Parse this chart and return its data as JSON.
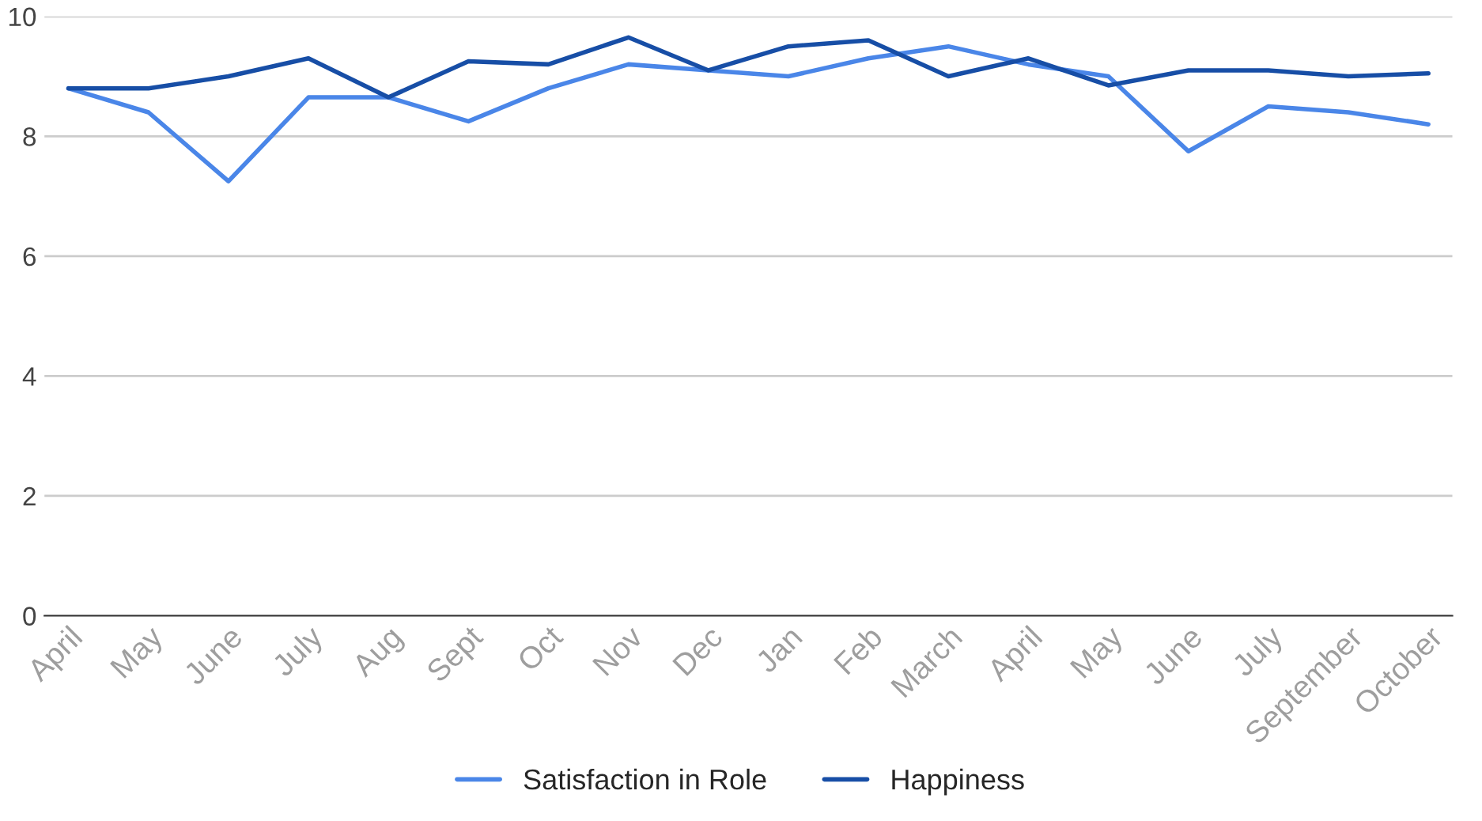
{
  "chart_data": {
    "type": "line",
    "categories": [
      "April",
      "May",
      "June",
      "July",
      "Aug",
      "Sept",
      "Oct",
      "Nov",
      "Dec",
      "Jan",
      "Feb",
      "March",
      "April",
      "May",
      "June",
      "July",
      "September",
      "October"
    ],
    "series": [
      {
        "name": "Satisfaction in Role",
        "color": "#4a86e8",
        "values": [
          8.8,
          8.4,
          7.25,
          8.65,
          8.65,
          8.25,
          8.8,
          9.2,
          9.1,
          9.0,
          9.3,
          9.5,
          9.2,
          9.0,
          7.75,
          8.5,
          8.4,
          8.2
        ]
      },
      {
        "name": "Happiness",
        "color": "#174ea6",
        "values": [
          8.8,
          8.8,
          9.0,
          9.3,
          8.65,
          9.25,
          9.2,
          9.65,
          9.1,
          9.5,
          9.6,
          9.0,
          9.3,
          8.85,
          9.1,
          9.1,
          9.0,
          9.05
        ]
      }
    ],
    "ylim": [
      0,
      10
    ],
    "yticks": [
      0,
      2,
      4,
      6,
      8,
      10
    ],
    "grid": "y",
    "legend": "bottom",
    "marker": "none",
    "line_style": "solid"
  }
}
